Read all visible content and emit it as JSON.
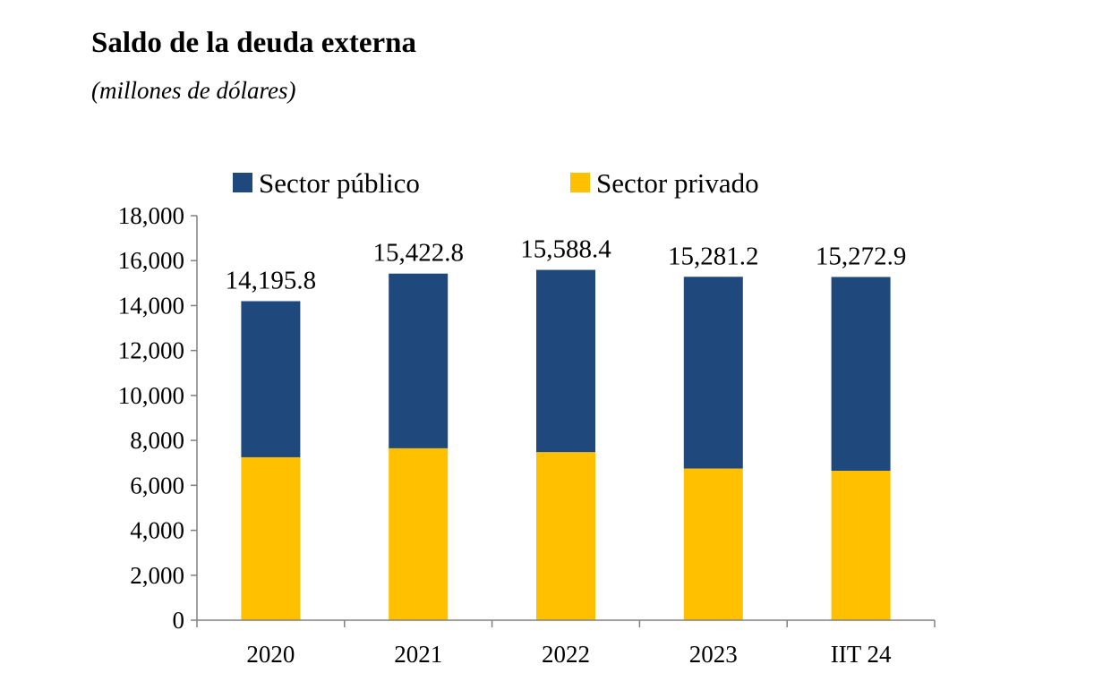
{
  "title": "Saldo de la deuda externa",
  "subtitle": "(millones de dólares)",
  "colors": {
    "publico": "#1F497D",
    "privado": "#FFC000",
    "axis": "#808080"
  },
  "chart_data": {
    "type": "bar",
    "stacked": true,
    "categories": [
      "2020",
      "2021",
      "2022",
      "2023",
      "IIT 24"
    ],
    "series": [
      {
        "name": "Sector privado",
        "color": "#FFC000",
        "values": [
          7250,
          7650,
          7480,
          6750,
          6650
        ]
      },
      {
        "name": "Sector público",
        "color": "#1F497D",
        "values": [
          6945.8,
          7772.8,
          8108.4,
          8531.2,
          8622.9
        ]
      }
    ],
    "totals": [
      14195.8,
      15422.8,
      15588.4,
      15281.2,
      15272.9
    ],
    "total_labels": [
      "14,195.8",
      "15,422.8",
      "15,588.4",
      "15,281.2",
      "15,272.9"
    ],
    "ylim": [
      0,
      18000
    ],
    "yticks": [
      0,
      2000,
      4000,
      6000,
      8000,
      10000,
      12000,
      14000,
      16000,
      18000
    ],
    "ytick_labels": [
      "0",
      "2,000",
      "4,000",
      "6,000",
      "8,000",
      "10,000",
      "12,000",
      "14,000",
      "16,000",
      "18,000"
    ],
    "legend": {
      "placement": "top",
      "entries": [
        {
          "label": "Sector público",
          "color": "#1F497D"
        },
        {
          "label": "Sector privado",
          "color": "#FFC000"
        }
      ]
    },
    "grid": false
  }
}
